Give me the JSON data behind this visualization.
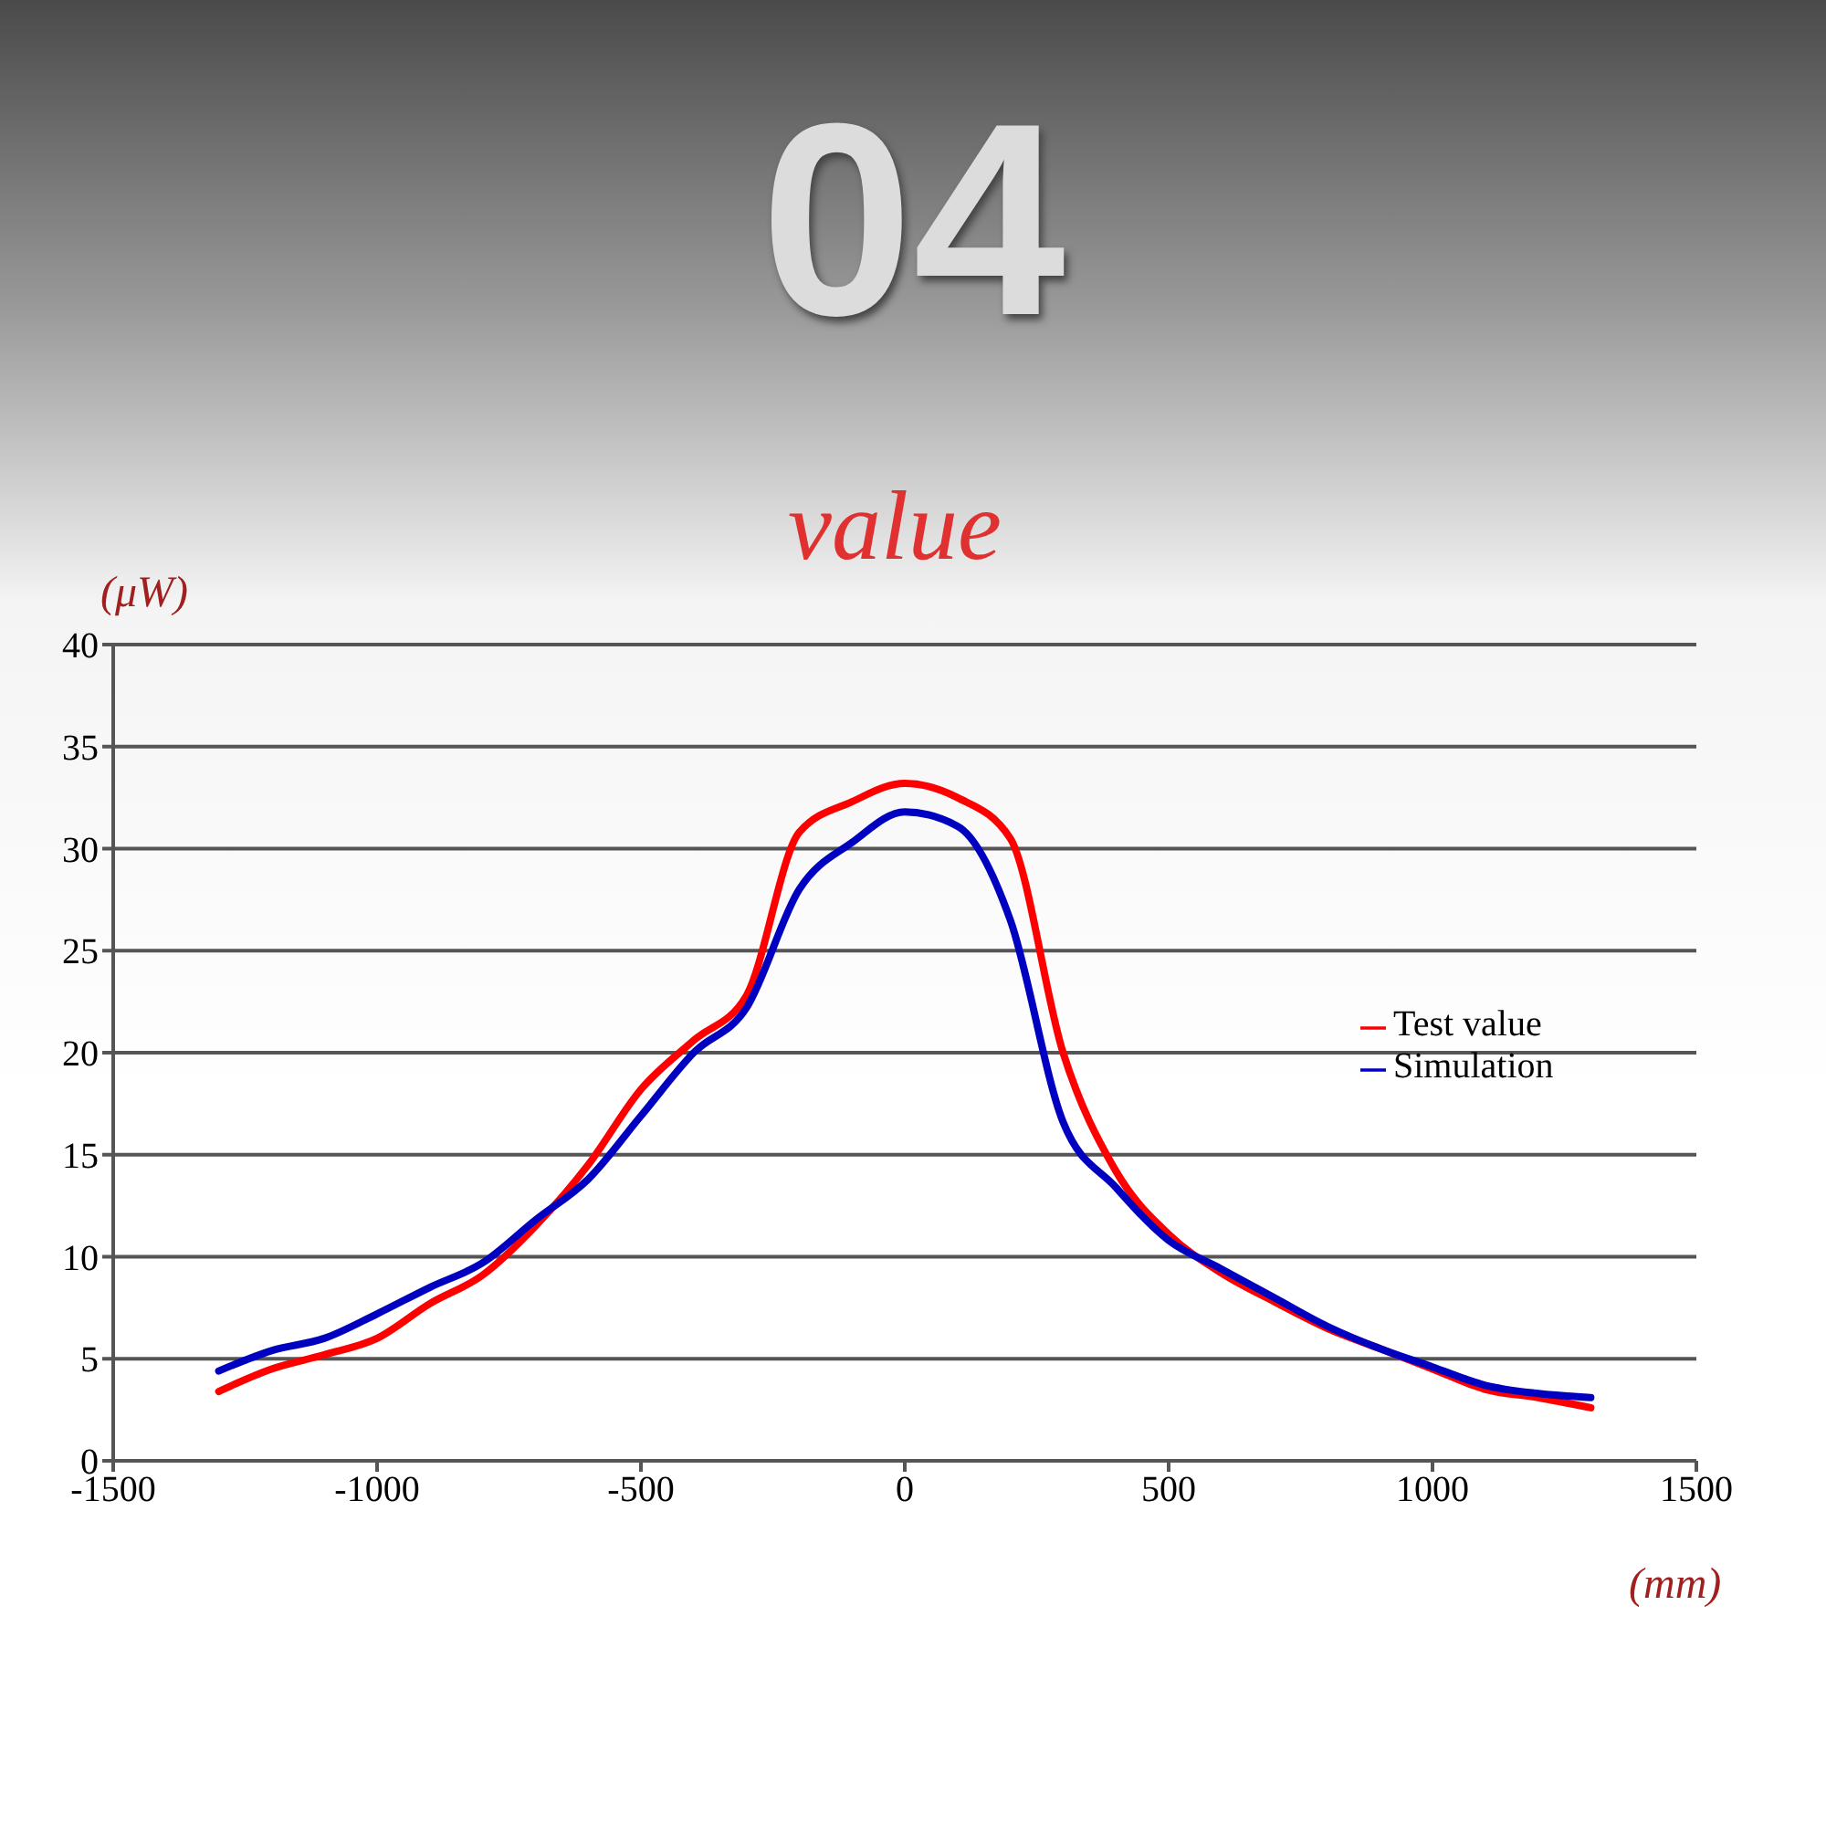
{
  "chart_data": {
    "type": "line",
    "title": "value",
    "ylabel": "(μW)",
    "xlabel": "(mm)",
    "annotations": [
      "04"
    ],
    "x": [
      -1300,
      -1200,
      -1100,
      -1000,
      -900,
      -800,
      -700,
      -600,
      -500,
      -400,
      -300,
      -200,
      -100,
      0,
      100,
      200,
      300,
      400,
      500,
      600,
      700,
      800,
      900,
      1000,
      1100,
      1200,
      1300
    ],
    "series": [
      {
        "name": "Test value",
        "color": "#ff0000",
        "values": [
          3.4,
          4.5,
          5.2,
          6.0,
          7.7,
          9.1,
          11.5,
          14.5,
          18.2,
          20.6,
          22.8,
          30.8,
          32.3,
          33.2,
          32.5,
          30.5,
          20.0,
          14.2,
          11.1,
          9.2,
          7.8,
          6.5,
          5.5,
          4.5,
          3.5,
          3.1,
          2.6
        ]
      },
      {
        "name": "Simulation",
        "color": "#0000c0",
        "values": [
          4.4,
          5.4,
          6.0,
          7.2,
          8.5,
          9.7,
          11.8,
          13.8,
          16.9,
          20.0,
          22.2,
          28.0,
          30.3,
          31.8,
          31.1,
          26.5,
          16.6,
          13.4,
          10.8,
          9.4,
          8.0,
          6.6,
          5.5,
          4.6,
          3.7,
          3.3,
          3.1
        ]
      }
    ],
    "xlim": [
      -1500,
      1500
    ],
    "xticks": [
      -1500,
      -1000,
      -500,
      0,
      500,
      1000,
      1500
    ],
    "ylim": [
      0,
      40
    ],
    "yticks": [
      0,
      5,
      10,
      15,
      20,
      25,
      30,
      35,
      40
    ],
    "grid": "y",
    "legend": "right",
    "marker": "none",
    "line_style": "solid"
  }
}
